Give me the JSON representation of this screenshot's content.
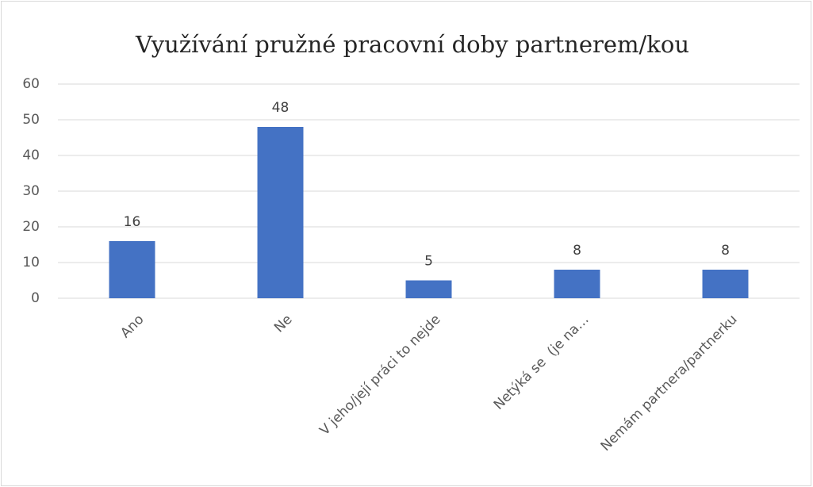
{
  "chart_data": {
    "type": "bar",
    "title": "Využívání pružné pracovní doby partnerem/kou",
    "categories": [
      "Ano",
      "Ne",
      "V jeho/její práci to nejde",
      "Netýká se  (je na…",
      "Nemám partnera/partnerku"
    ],
    "values": [
      16,
      48,
      5,
      8,
      8
    ],
    "color": "#4472c4",
    "ylim": [
      0,
      60
    ],
    "yticks": [
      0,
      10,
      20,
      30,
      40,
      50,
      60
    ],
    "grid": true
  }
}
